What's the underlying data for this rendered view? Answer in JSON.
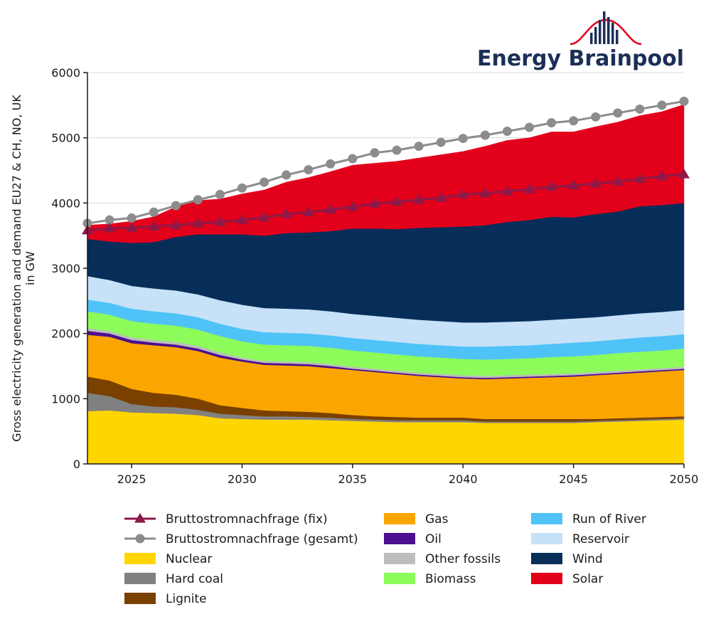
{
  "brand": {
    "name": "Energy Brainpool",
    "logo_bar_color": "#1b2f57",
    "logo_curve_color": "#e0001b"
  },
  "chart_data": {
    "type": "area",
    "stacked": true,
    "ylabel_lines": [
      "Gross electricity generation and demand EU27 & CH, NO, UK",
      "in GW"
    ],
    "xlabel": "",
    "xlim": [
      2023,
      2050
    ],
    "ylim": [
      0,
      6000
    ],
    "x_ticks": [
      2025,
      2030,
      2035,
      2040,
      2045,
      2050
    ],
    "y_ticks": [
      0,
      1000,
      2000,
      3000,
      4000,
      5000,
      6000
    ],
    "grid": "horizontal",
    "legend_position": "bottom",
    "x": [
      2023,
      2024,
      2025,
      2026,
      2027,
      2028,
      2029,
      2030,
      2031,
      2032,
      2033,
      2034,
      2035,
      2036,
      2037,
      2038,
      2039,
      2040,
      2041,
      2042,
      2043,
      2044,
      2045,
      2046,
      2047,
      2048,
      2049,
      2050
    ],
    "series": [
      {
        "name": "Nuclear",
        "color": "#ffd500",
        "values": [
          810,
          820,
          790,
          780,
          770,
          750,
          700,
          690,
          680,
          680,
          680,
          670,
          660,
          650,
          640,
          640,
          640,
          640,
          630,
          630,
          630,
          630,
          630,
          640,
          650,
          660,
          670,
          680
        ]
      },
      {
        "name": "Hard coal",
        "color": "#808080",
        "values": [
          280,
          220,
          130,
          100,
          100,
          80,
          70,
          60,
          50,
          50,
          40,
          40,
          30,
          30,
          30,
          30,
          30,
          30,
          20,
          20,
          20,
          20,
          20,
          20,
          20,
          20,
          20,
          20
        ]
      },
      {
        "name": "Lignite",
        "color": "#7a4000",
        "values": [
          250,
          240,
          230,
          210,
          190,
          170,
          130,
          110,
          90,
          80,
          80,
          70,
          60,
          50,
          50,
          40,
          40,
          40,
          40,
          40,
          40,
          40,
          40,
          30,
          30,
          30,
          30,
          30
        ]
      },
      {
        "name": "Gas",
        "color": "#fba600",
        "values": [
          640,
          670,
          700,
          730,
          730,
          730,
          730,
          710,
          700,
          700,
          700,
          690,
          690,
          680,
          660,
          640,
          620,
          600,
          610,
          620,
          630,
          640,
          650,
          670,
          680,
          690,
          700,
          710
        ]
      },
      {
        "name": "Oil",
        "color": "#4b0f8f",
        "values": [
          60,
          50,
          50,
          40,
          40,
          40,
          40,
          30,
          30,
          30,
          30,
          30,
          20,
          20,
          20,
          20,
          20,
          20,
          20,
          20,
          20,
          20,
          20,
          20,
          20,
          20,
          20,
          20
        ]
      },
      {
        "name": "Other fossils",
        "color": "#bdbdbd",
        "values": [
          40,
          40,
          40,
          40,
          40,
          40,
          40,
          30,
          30,
          30,
          30,
          30,
          30,
          30,
          30,
          30,
          30,
          30,
          30,
          30,
          30,
          30,
          30,
          30,
          30,
          30,
          30,
          30
        ]
      },
      {
        "name": "Biomass",
        "color": "#8dfc5a",
        "values": [
          260,
          250,
          250,
          250,
          250,
          250,
          250,
          250,
          250,
          250,
          250,
          250,
          250,
          250,
          250,
          250,
          250,
          250,
          250,
          250,
          250,
          260,
          260,
          260,
          270,
          270,
          270,
          280
        ]
      },
      {
        "name": "Run of River",
        "color": "#4fc3f7",
        "values": [
          180,
          180,
          190,
          190,
          190,
          190,
          190,
          190,
          190,
          190,
          190,
          190,
          190,
          190,
          190,
          190,
          190,
          190,
          200,
          200,
          200,
          200,
          210,
          210,
          210,
          220,
          220,
          220
        ]
      },
      {
        "name": "Reservoir",
        "color": "#c6e1f8",
        "values": [
          360,
          350,
          350,
          350,
          350,
          350,
          360,
          370,
          370,
          370,
          370,
          370,
          370,
          370,
          370,
          370,
          370,
          370,
          370,
          370,
          370,
          370,
          370,
          370,
          370,
          370,
          370,
          370
        ]
      },
      {
        "name": "Wind",
        "color": "#062e59",
        "values": [
          570,
          590,
          660,
          710,
          820,
          920,
          1010,
          1080,
          1110,
          1160,
          1180,
          1230,
          1310,
          1340,
          1360,
          1410,
          1440,
          1470,
          1490,
          1530,
          1550,
          1580,
          1550,
          1580,
          1590,
          1640,
          1640,
          1640
        ]
      },
      {
        "name": "Solar",
        "color": "#e3001b",
        "values": [
          210,
          270,
          330,
          390,
          460,
          520,
          540,
          620,
          700,
          780,
          840,
          910,
          970,
          1000,
          1040,
          1070,
          1110,
          1150,
          1210,
          1250,
          1260,
          1300,
          1310,
          1340,
          1370,
          1390,
          1430,
          1510
        ]
      }
    ],
    "lines": [
      {
        "name": "Bruttostromnachfrage (fix)",
        "color": "#8b1a4a",
        "marker": "triangle",
        "values": [
          3580,
          3610,
          3620,
          3640,
          3660,
          3690,
          3710,
          3740,
          3780,
          3830,
          3860,
          3900,
          3940,
          3990,
          4020,
          4050,
          4080,
          4130,
          4150,
          4180,
          4210,
          4250,
          4270,
          4300,
          4330,
          4370,
          4410,
          4440
        ]
      },
      {
        "name": "Bruttostromnachfrage (gesamt)",
        "color": "#8c8c8c",
        "marker": "circle",
        "values": [
          3690,
          3740,
          3770,
          3860,
          3960,
          4050,
          4130,
          4230,
          4320,
          4430,
          4510,
          4600,
          4680,
          4770,
          4810,
          4870,
          4930,
          4990,
          5040,
          5100,
          5160,
          5230,
          5260,
          5320,
          5380,
          5440,
          5500,
          5560
        ]
      }
    ],
    "legend_order": [
      "Bruttostromnachfrage (fix)",
      "Bruttostromnachfrage (gesamt)",
      "Nuclear",
      "Hard coal",
      "Lignite",
      "Gas",
      "Oil",
      "Other fossils",
      "Biomass",
      "Run of River",
      "Reservoir",
      "Wind",
      "Solar"
    ]
  }
}
